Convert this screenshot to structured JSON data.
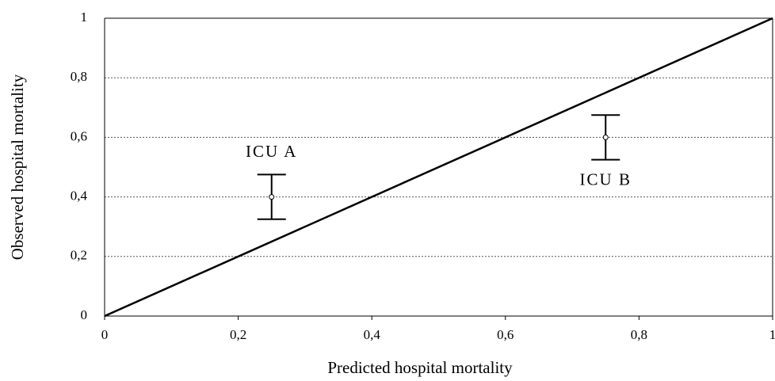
{
  "chart_data": {
    "type": "errorbar",
    "xlabel": "Predicted hospital mortality",
    "ylabel": "Observed hospital mortality",
    "xlim": [
      0,
      1
    ],
    "ylim": [
      0,
      1
    ],
    "xticks": [
      0,
      {
        "value": 0.2,
        "label": "0,2"
      },
      {
        "value": 0.4,
        "label": "0,4"
      },
      {
        "value": 0.6,
        "label": "0,6"
      },
      {
        "value": 0.8,
        "label": "0,8"
      },
      1
    ],
    "yticks": [
      0,
      {
        "value": 0.2,
        "label": "0,2"
      },
      {
        "value": 0.4,
        "label": "0,4"
      },
      {
        "value": 0.6,
        "label": "0,6"
      },
      {
        "value": 0.8,
        "label": "0,8"
      },
      1
    ],
    "grid": true,
    "reference_line": {
      "x": [
        0,
        1
      ],
      "y": [
        0,
        1
      ]
    },
    "series": [
      {
        "name": "ICU A",
        "color": "#000000",
        "x": [
          0.25
        ],
        "values": [
          0.4
        ],
        "errors": [
          0.075
        ]
      },
      {
        "name": "ICU B",
        "color": "#000000",
        "x": [
          0.75
        ],
        "values": [
          0.6
        ],
        "errors": [
          0.075
        ]
      }
    ]
  }
}
